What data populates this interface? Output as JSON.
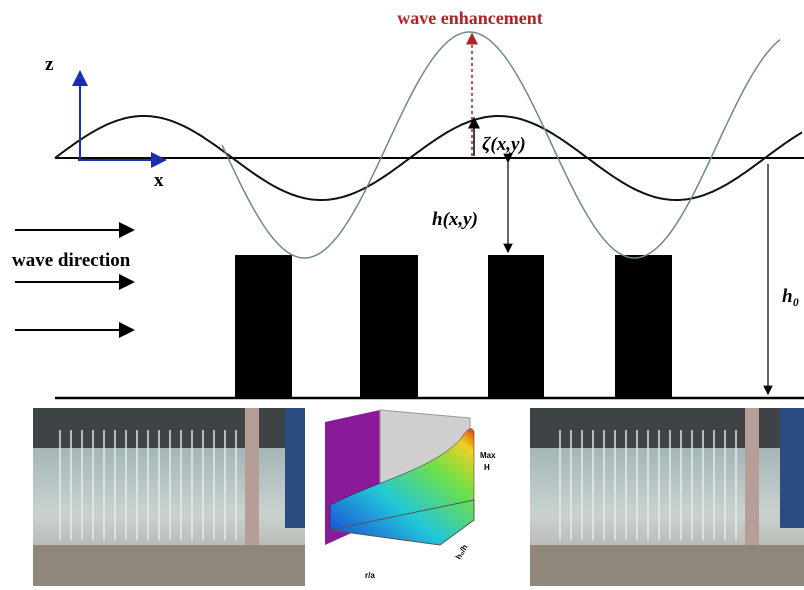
{
  "title_annotation": "wave enhancement",
  "axes": {
    "z": "z",
    "x": "x"
  },
  "labels": {
    "surface": "ζ(x,y)",
    "depth": "h(x,y)",
    "direction": "wave direction",
    "total_depth": "h₀"
  },
  "inset": {
    "legend_top": "Max",
    "legend_bottom": "H",
    "x_axis": "r/a",
    "y_axis": "h₀/h"
  }
}
